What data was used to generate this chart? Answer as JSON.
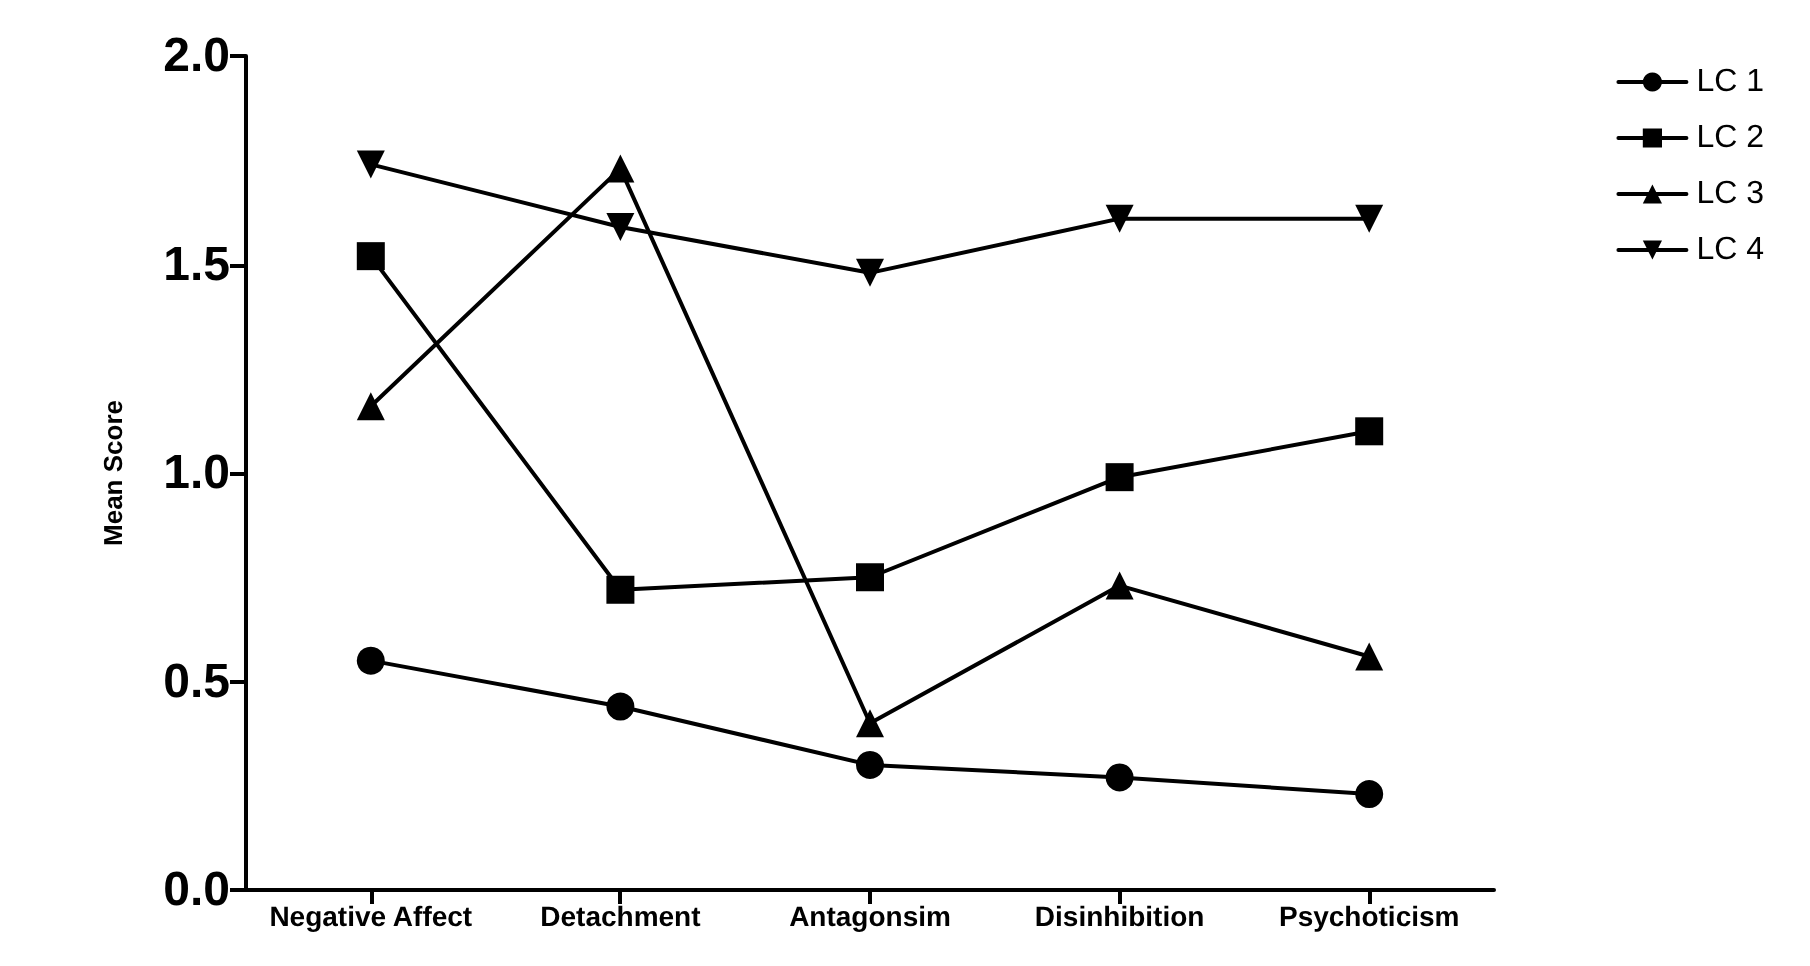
{
  "chart_data": {
    "type": "line",
    "ylabel": "Mean Score",
    "categories": [
      "Negative Affect",
      "Detachment",
      "Antagonsim",
      "Disinhibition",
      "Psychoticism"
    ],
    "series": [
      {
        "name": "LC 1",
        "color": "#000000",
        "marker": "circle",
        "values": [
          0.55,
          0.44,
          0.3,
          0.27,
          0.23
        ]
      },
      {
        "name": "LC 2",
        "color": "#000000",
        "marker": "square",
        "values": [
          1.52,
          0.72,
          0.75,
          0.99,
          1.1
        ]
      },
      {
        "name": "LC 3",
        "color": "#000000",
        "marker": "triangle",
        "values": [
          1.16,
          1.73,
          0.4,
          0.73,
          0.56
        ]
      },
      {
        "name": "LC 4",
        "color": "#000000",
        "marker": "triangle-down",
        "values": [
          1.74,
          1.59,
          1.48,
          1.61,
          1.61
        ]
      }
    ],
    "ylim": [
      0,
      2
    ],
    "yticks": [
      {
        "value": 0,
        "label": "0.0"
      },
      {
        "value": 0.5,
        "label": "0.5"
      },
      {
        "value": 1,
        "label": "1.0"
      },
      {
        "value": 1.5,
        "label": "1.5"
      },
      {
        "value": 2,
        "label": "2.0"
      }
    ],
    "grid": false,
    "legend": "top right",
    "line_style": "solid"
  }
}
